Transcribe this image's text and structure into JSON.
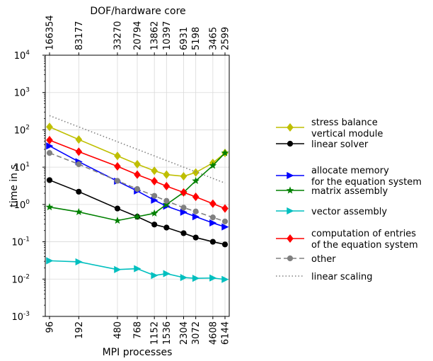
{
  "chart_data": {
    "type": "line",
    "title": "DOF/hardware core",
    "xlabel": "MPI processes",
    "ylabel": "time in s",
    "x_scale": "log",
    "y_scale": "log",
    "ylim": [
      0.001,
      10000
    ],
    "grid": true,
    "legend_position": "right, outside plot",
    "x": [
      96,
      192,
      480,
      768,
      1152,
      1536,
      2304,
      3072,
      4608,
      6144
    ],
    "x_tick_labels": [
      "96",
      "192",
      "480",
      "768",
      "1152",
      "1536",
      "2304",
      "3072",
      "4608",
      "6144"
    ],
    "top_tick_labels": [
      "166354",
      "83177",
      "33270",
      "20794",
      "13862",
      "10397",
      "6931",
      "5198",
      "3465",
      "2599"
    ],
    "y_tick_labels": [
      {
        "base": "10",
        "exp": "-3",
        "value": 0.001
      },
      {
        "base": "10",
        "exp": "-2",
        "value": 0.01
      },
      {
        "base": "10",
        "exp": "-1",
        "value": 0.1
      },
      {
        "base": "10",
        "exp": "0",
        "value": 1
      },
      {
        "base": "10",
        "exp": "1",
        "value": 10
      },
      {
        "base": "10",
        "exp": "2",
        "value": 100
      },
      {
        "base": "10",
        "exp": "3",
        "value": 1000
      },
      {
        "base": "10",
        "exp": "4",
        "value": 10000
      }
    ],
    "series": [
      {
        "name": "stress balance\nvertical module",
        "color": "#bfbf00",
        "marker": "diamond",
        "line": "solid",
        "values": [
          120,
          55,
          20,
          12,
          8,
          6.3,
          5.7,
          7.2,
          13,
          24
        ]
      },
      {
        "name": "linear solver",
        "color": "#000000",
        "marker": "circle",
        "line": "solid",
        "values": [
          4.5,
          2.2,
          0.78,
          0.47,
          0.29,
          0.24,
          0.17,
          0.13,
          0.1,
          0.085
        ]
      },
      {
        "name": "allocate memory\nfor the equation system",
        "color": "#0000ff",
        "marker": "triangle-right",
        "line": "solid",
        "values": [
          37,
          14,
          4.2,
          2.3,
          1.3,
          0.9,
          0.62,
          0.47,
          0.32,
          0.25
        ]
      },
      {
        "name": "matrix assembly",
        "color": "#008000",
        "marker": "star",
        "line": "solid",
        "values": [
          0.85,
          0.63,
          0.37,
          0.47,
          0.58,
          1.0,
          2.1,
          4.3,
          11,
          24
        ]
      },
      {
        "name": "vector assembly",
        "color": "#00bfbf",
        "marker": "triangle-right",
        "line": "solid",
        "values": [
          0.031,
          0.029,
          0.018,
          0.019,
          0.0125,
          0.014,
          0.011,
          0.0105,
          0.0107,
          0.0098
        ]
      },
      {
        "name": "computation of entries\nof the equation system",
        "color": "#ff0000",
        "marker": "diamond",
        "line": "solid",
        "values": [
          53,
          26,
          10.5,
          6.3,
          4.2,
          3.1,
          2.1,
          1.6,
          1.05,
          0.78
        ]
      },
      {
        "name": "other",
        "color": "#808080",
        "marker": "circle",
        "line": "dashed",
        "values": [
          24,
          12,
          4.3,
          2.6,
          1.7,
          1.25,
          0.82,
          0.65,
          0.45,
          0.35
        ]
      },
      {
        "name": "linear scaling",
        "color": "#808080",
        "marker": "none",
        "line": "dotted",
        "values": [
          240,
          120,
          48,
          30,
          20,
          15,
          10,
          7.5,
          5,
          3.75
        ]
      }
    ]
  }
}
